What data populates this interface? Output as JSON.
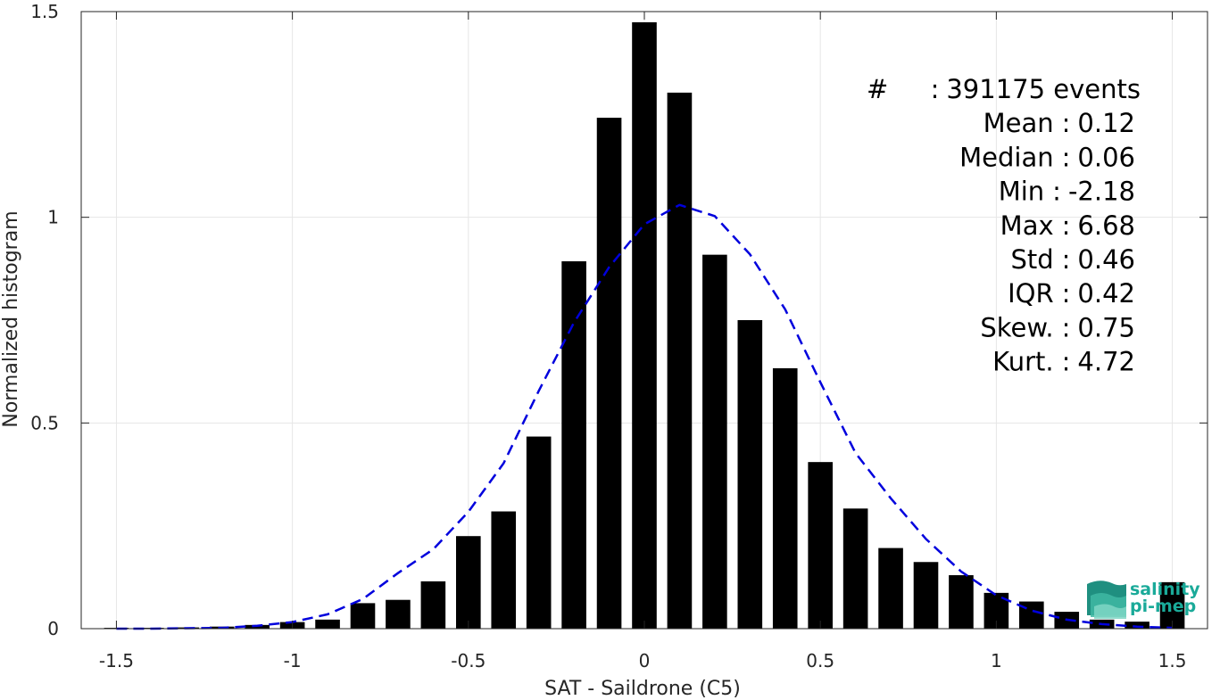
{
  "chart_data": {
    "type": "bar",
    "title": "",
    "xlabel": "SAT - Saildrone (C5)",
    "ylabel": "Normalized histogram",
    "xlim": [
      -1.6,
      1.6
    ],
    "ylim": [
      0,
      1.5
    ],
    "xticks": [
      -1.5,
      -1,
      -0.5,
      0,
      0.5,
      1,
      1.5
    ],
    "xtick_labels": [
      "-1.5",
      "-1",
      "-0.5",
      "0",
      "0.5",
      "1",
      "1.5"
    ],
    "yticks": [
      0,
      0.5,
      1,
      1.5
    ],
    "ytick_labels": [
      "0",
      "0.5",
      "1",
      "1.5"
    ],
    "grid": true,
    "bar_width": 0.07,
    "bar_color": "#000000",
    "bars": [
      {
        "x": -1.5,
        "y": 0.002
      },
      {
        "x": -1.4,
        "y": 0.002
      },
      {
        "x": -1.3,
        "y": 0.003
      },
      {
        "x": -1.2,
        "y": 0.005
      },
      {
        "x": -1.1,
        "y": 0.009
      },
      {
        "x": -1.0,
        "y": 0.016
      },
      {
        "x": -0.9,
        "y": 0.022
      },
      {
        "x": -0.8,
        "y": 0.062
      },
      {
        "x": -0.7,
        "y": 0.07
      },
      {
        "x": -0.6,
        "y": 0.115
      },
      {
        "x": -0.5,
        "y": 0.225
      },
      {
        "x": -0.4,
        "y": 0.285
      },
      {
        "x": -0.3,
        "y": 0.467
      },
      {
        "x": -0.2,
        "y": 0.893
      },
      {
        "x": -0.1,
        "y": 1.242
      },
      {
        "x": 0.0,
        "y": 1.474
      },
      {
        "x": 0.1,
        "y": 1.303
      },
      {
        "x": 0.2,
        "y": 0.909
      },
      {
        "x": 0.3,
        "y": 0.75
      },
      {
        "x": 0.4,
        "y": 0.633
      },
      {
        "x": 0.5,
        "y": 0.405
      },
      {
        "x": 0.6,
        "y": 0.292
      },
      {
        "x": 0.7,
        "y": 0.196
      },
      {
        "x": 0.8,
        "y": 0.162
      },
      {
        "x": 0.9,
        "y": 0.13
      },
      {
        "x": 1.0,
        "y": 0.087
      },
      {
        "x": 1.1,
        "y": 0.066
      },
      {
        "x": 1.2,
        "y": 0.041
      },
      {
        "x": 1.3,
        "y": 0.022
      },
      {
        "x": 1.4,
        "y": 0.017
      },
      {
        "x": 1.5,
        "y": 0.113
      }
    ],
    "fit_curve": {
      "style": "dashed",
      "color": "#0000dd",
      "points": [
        [
          -1.5,
          0.0
        ],
        [
          -1.4,
          0.0
        ],
        [
          -1.3,
          0.001
        ],
        [
          -1.2,
          0.002
        ],
        [
          -1.1,
          0.007
        ],
        [
          -1.0,
          0.016
        ],
        [
          -0.9,
          0.035
        ],
        [
          -0.8,
          0.072
        ],
        [
          -0.7,
          0.135
        ],
        [
          -0.6,
          0.193
        ],
        [
          -0.5,
          0.284
        ],
        [
          -0.4,
          0.402
        ],
        [
          -0.3,
          0.578
        ],
        [
          -0.2,
          0.744
        ],
        [
          -0.1,
          0.879
        ],
        [
          0.0,
          0.983
        ],
        [
          0.1,
          1.03
        ],
        [
          0.2,
          1.003
        ],
        [
          0.3,
          0.91
        ],
        [
          0.4,
          0.776
        ],
        [
          0.5,
          0.599
        ],
        [
          0.6,
          0.427
        ],
        [
          0.7,
          0.317
        ],
        [
          0.8,
          0.218
        ],
        [
          0.9,
          0.139
        ],
        [
          1.0,
          0.081
        ],
        [
          1.1,
          0.044
        ],
        [
          1.2,
          0.022
        ],
        [
          1.3,
          0.011
        ],
        [
          1.4,
          0.005
        ],
        [
          1.5,
          0.002
        ]
      ]
    },
    "annotations": [
      {
        "label": "#",
        "sep": ":",
        "value": "391175 events"
      },
      {
        "label": "Mean",
        "sep": ":",
        "value": "0.12"
      },
      {
        "label": "Median",
        "sep": ":",
        "value": "0.06"
      },
      {
        "label": "Min",
        "sep": ":",
        "value": "-2.18"
      },
      {
        "label": "Max",
        "sep": ":",
        "value": "6.68"
      },
      {
        "label": "Std",
        "sep": ":",
        "value": "0.46"
      },
      {
        "label": "IQR",
        "sep": ":",
        "value": "0.42"
      },
      {
        "label": "Skew.",
        "sep": ":",
        "value": "0.75"
      },
      {
        "label": "Kurt.",
        "sep": ":",
        "value": "4.72"
      }
    ]
  },
  "logo": {
    "line1": "salinity",
    "line2": "pi-mep",
    "color": "#1aaa99"
  }
}
